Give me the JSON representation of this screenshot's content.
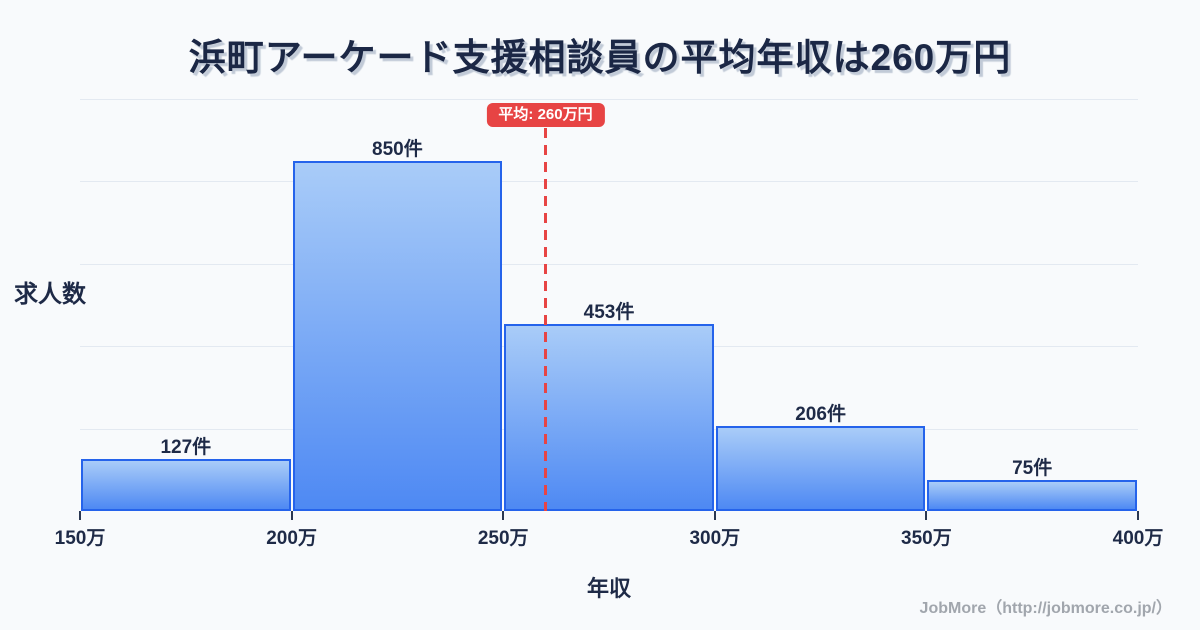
{
  "title": "浜町アーケード支援相談員の平均年収は260万円",
  "chart_data": {
    "type": "bar",
    "subtype": "histogram",
    "title": "浜町アーケード支援相談員の平均年収は260万円",
    "xlabel": "年収",
    "ylabel": "求人数",
    "bin_edges": [
      150,
      200,
      250,
      300,
      350,
      400
    ],
    "bin_edge_labels": [
      "150万",
      "200万",
      "250万",
      "300万",
      "350万",
      "400万"
    ],
    "values": [
      127,
      850,
      453,
      206,
      75
    ],
    "bar_labels": [
      "127件",
      "850件",
      "453件",
      "206件",
      "75件"
    ],
    "ylim": [
      0,
      1000
    ],
    "gridline_step": 200,
    "grid": true,
    "average": {
      "value": 260,
      "label": "平均: 260万円"
    }
  },
  "footer": {
    "credit": "JobMore（http://jobmore.co.jp/）"
  },
  "colors": {
    "background": "#f8fafc",
    "title_text": "#1b2745",
    "axis_text": "#1e2a47",
    "gridline": "#e3e9f1",
    "bar_fill_top": "#a9ccf8",
    "bar_fill_bottom": "#4e89f3",
    "bar_border": "#2563eb",
    "average_line": "#e74444",
    "badge_text": "#ffffff",
    "footer_text": "#a1a6ad"
  }
}
